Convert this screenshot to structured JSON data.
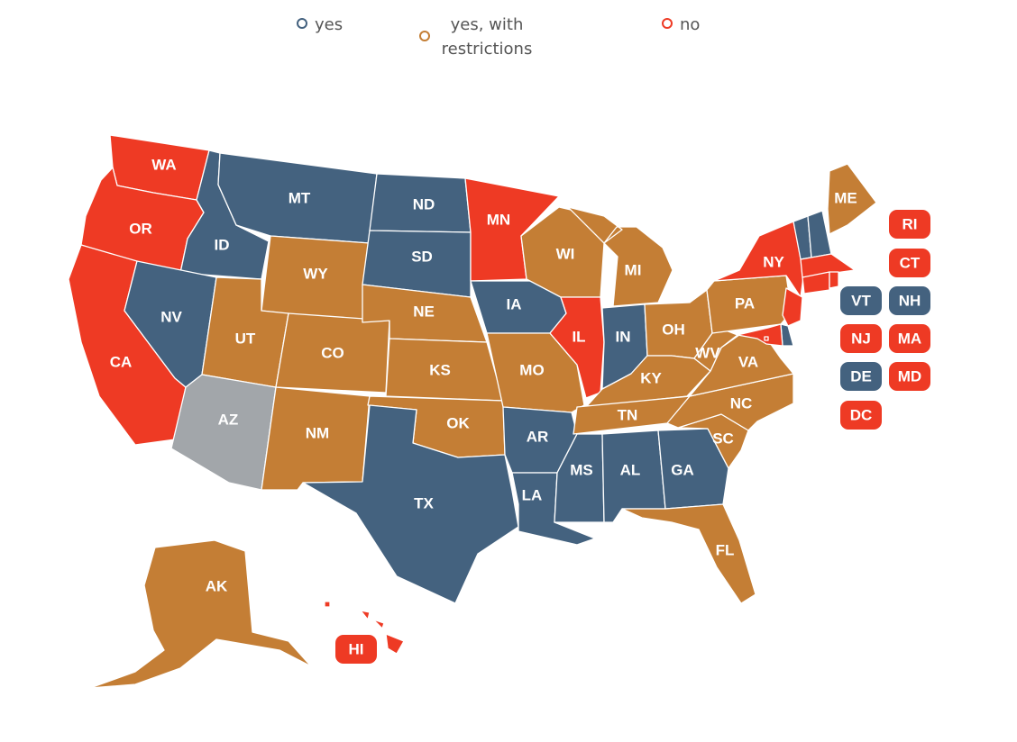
{
  "colors": {
    "yes": "#44627f",
    "restricted": "#c47e35",
    "no": "#ee3a24",
    "none": "#a2a6aa"
  },
  "legend": [
    {
      "key": "yes",
      "label": "yes"
    },
    {
      "key": "restricted",
      "label": "yes, with restrictions"
    },
    {
      "key": "no",
      "label": "no"
    }
  ],
  "states": [
    {
      "abbr": "WA",
      "status": "no"
    },
    {
      "abbr": "OR",
      "status": "no"
    },
    {
      "abbr": "CA",
      "status": "no"
    },
    {
      "abbr": "ID",
      "status": "yes"
    },
    {
      "abbr": "NV",
      "status": "yes"
    },
    {
      "abbr": "MT",
      "status": "yes"
    },
    {
      "abbr": "WY",
      "status": "restricted"
    },
    {
      "abbr": "UT",
      "status": "restricted"
    },
    {
      "abbr": "AZ",
      "status": "none"
    },
    {
      "abbr": "CO",
      "status": "restricted"
    },
    {
      "abbr": "NM",
      "status": "restricted"
    },
    {
      "abbr": "ND",
      "status": "yes"
    },
    {
      "abbr": "SD",
      "status": "yes"
    },
    {
      "abbr": "NE",
      "status": "restricted"
    },
    {
      "abbr": "KS",
      "status": "restricted"
    },
    {
      "abbr": "OK",
      "status": "restricted"
    },
    {
      "abbr": "TX",
      "status": "yes"
    },
    {
      "abbr": "MN",
      "status": "no"
    },
    {
      "abbr": "IA",
      "status": "yes"
    },
    {
      "abbr": "MO",
      "status": "restricted"
    },
    {
      "abbr": "AR",
      "status": "yes"
    },
    {
      "abbr": "LA",
      "status": "yes"
    },
    {
      "abbr": "WI",
      "status": "restricted"
    },
    {
      "abbr": "IL",
      "status": "no"
    },
    {
      "abbr": "MI",
      "status": "restricted"
    },
    {
      "abbr": "IN",
      "status": "yes"
    },
    {
      "abbr": "OH",
      "status": "restricted"
    },
    {
      "abbr": "KY",
      "status": "restricted"
    },
    {
      "abbr": "TN",
      "status": "restricted"
    },
    {
      "abbr": "MS",
      "status": "yes"
    },
    {
      "abbr": "AL",
      "status": "yes"
    },
    {
      "abbr": "GA",
      "status": "yes"
    },
    {
      "abbr": "FL",
      "status": "restricted"
    },
    {
      "abbr": "SC",
      "status": "restricted"
    },
    {
      "abbr": "NC",
      "status": "restricted"
    },
    {
      "abbr": "VA",
      "status": "restricted"
    },
    {
      "abbr": "WV",
      "status": "restricted"
    },
    {
      "abbr": "PA",
      "status": "restricted"
    },
    {
      "abbr": "NY",
      "status": "no"
    },
    {
      "abbr": "ME",
      "status": "restricted"
    },
    {
      "abbr": "AK",
      "status": "restricted"
    },
    {
      "abbr": "HI",
      "status": "no"
    },
    {
      "abbr": "VT",
      "status": "yes"
    },
    {
      "abbr": "NH",
      "status": "yes"
    },
    {
      "abbr": "MA",
      "status": "no"
    },
    {
      "abbr": "RI",
      "status": "no"
    },
    {
      "abbr": "CT",
      "status": "no"
    },
    {
      "abbr": "NJ",
      "status": "no"
    },
    {
      "abbr": "DE",
      "status": "yes"
    },
    {
      "abbr": "MD",
      "status": "no"
    },
    {
      "abbr": "DC",
      "status": "no"
    }
  ]
}
